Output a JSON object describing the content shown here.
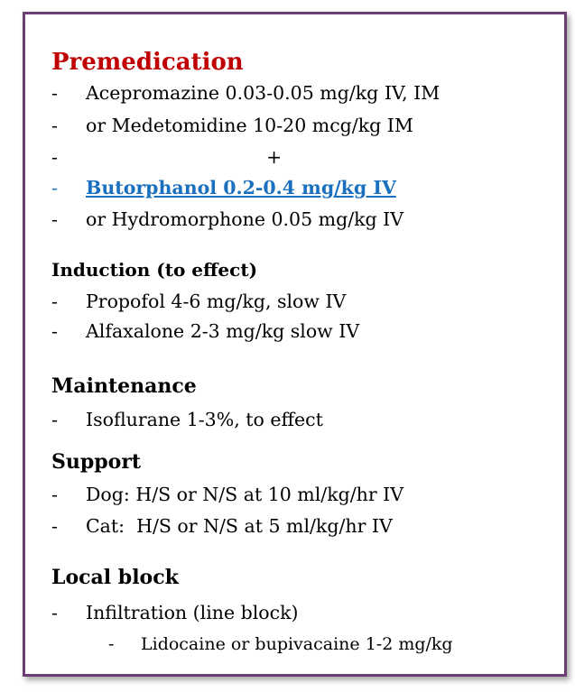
{
  "colors": {
    "border": "#6b3e74",
    "title": "#c00000",
    "highlight": "#1a6fbf"
  },
  "premedication": {
    "heading": "Premedication",
    "items": [
      {
        "bullet": "-",
        "text": "Acepromazine 0.03-0.05 mg/kg IV, IM"
      },
      {
        "bullet": "-",
        "text": "or Medetomidine 10-20 mcg/kg IM"
      },
      {
        "bullet": "-",
        "text": "+"
      },
      {
        "bullet": "-",
        "text": "Butorphanol 0.2-0.4 mg/kg IV"
      },
      {
        "bullet": "-",
        "text": "or Hydromorphone 0.05 mg/kg IV"
      }
    ]
  },
  "induction": {
    "heading": "Induction (to effect)",
    "items": [
      {
        "bullet": "-",
        "text": "Propofol 4-6 mg/kg, slow IV"
      },
      {
        "bullet": "-",
        "text": "Alfaxalone 2-3 mg/kg slow IV"
      }
    ]
  },
  "maintenance": {
    "heading": "Maintenance",
    "items": [
      {
        "bullet": "-",
        "text": "Isoflurane 1-3%, to effect"
      }
    ]
  },
  "support": {
    "heading": "Support",
    "items": [
      {
        "bullet": "-",
        "text": "Dog: H/S or N/S at 10 ml/kg/hr IV"
      },
      {
        "bullet": "-",
        "text": "Cat:  H/S or N/S at 5 ml/kg/hr IV"
      }
    ]
  },
  "local_block": {
    "heading": "Local block",
    "items": [
      {
        "bullet": "-",
        "text": "Infiltration (line block)"
      },
      {
        "bullet": "-",
        "text": "Lidocaine or bupivacaine 1-2 mg/kg"
      }
    ]
  }
}
